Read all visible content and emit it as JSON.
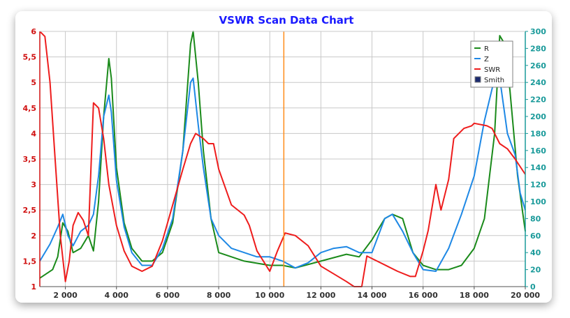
{
  "chart_data": {
    "type": "line",
    "title": "VSWR Scan Data Chart",
    "x_ticks": [
      2000,
      4000,
      6000,
      8000,
      10000,
      12000,
      14000,
      16000,
      18000,
      20000
    ],
    "x_tick_labels": [
      "2 000",
      "4 000",
      "6 000",
      "8 000",
      "10 000",
      "12 000",
      "14 000",
      "16 000",
      "18 000",
      "20 000"
    ],
    "xlim": [
      1000,
      20000
    ],
    "y_left_ticks": [
      "1",
      "1,5",
      "2",
      "2,5",
      "3",
      "3,5",
      "4",
      "4,5",
      "5",
      "5,5",
      "6"
    ],
    "y_left_values": [
      1,
      1.5,
      2,
      2.5,
      3,
      3.5,
      4,
      4.5,
      5,
      5.5,
      6
    ],
    "ylim_left": [
      1,
      6
    ],
    "y_right_ticks": [
      "0",
      "20",
      "40",
      "60",
      "80",
      "100",
      "120",
      "140",
      "160",
      "180",
      "200",
      "220",
      "240",
      "260",
      "280",
      "300"
    ],
    "y_right_values": [
      0,
      20,
      40,
      60,
      80,
      100,
      120,
      140,
      160,
      180,
      200,
      220,
      240,
      260,
      280,
      300
    ],
    "ylim_right": [
      0,
      300
    ],
    "grid": true,
    "legend_position": "top-right",
    "marker_x": 10550,
    "colors": {
      "R": "#1a8a1a",
      "Z": "#1e88e5",
      "SWR": "#ee1c1c",
      "Smith": "#1a2a6e",
      "marker": "#ff8c1a",
      "left_axis": "#d01010",
      "right_axis": "#1a9a9a",
      "title": "#1a1aff"
    },
    "legend": [
      {
        "name": "R",
        "style": "line",
        "color": "#1a8a1a"
      },
      {
        "name": "Z",
        "style": "line",
        "color": "#1e88e5"
      },
      {
        "name": "SWR",
        "style": "line",
        "color": "#ee1c1c"
      },
      {
        "name": "Smith",
        "style": "box",
        "color": "#1a2a6e"
      }
    ],
    "series": [
      {
        "name": "R",
        "axis": "right",
        "color": "#1a8a1a",
        "x": [
          1000,
          1500,
          1700,
          1900,
          2100,
          2300,
          2600,
          2900,
          3100,
          3300,
          3500,
          3700,
          3800,
          4000,
          4300,
          4600,
          5000,
          5400,
          5800,
          6200,
          6600,
          6900,
          7000,
          7200,
          7400,
          7700,
          8000,
          9000,
          10000,
          10500,
          11000,
          12000,
          13000,
          13500,
          14000,
          14500,
          14800,
          15200,
          15600,
          16000,
          16500,
          17000,
          17500,
          18000,
          18400,
          18800,
          19000,
          19200,
          19400,
          19700,
          20000
        ],
        "y": [
          10,
          20,
          35,
          75,
          65,
          40,
          45,
          60,
          42,
          100,
          200,
          268,
          245,
          140,
          75,
          45,
          30,
          30,
          40,
          75,
          160,
          285,
          300,
          240,
          160,
          80,
          40,
          30,
          25,
          25,
          22,
          30,
          38,
          35,
          55,
          80,
          85,
          80,
          40,
          25,
          20,
          20,
          25,
          45,
          80,
          180,
          295,
          285,
          230,
          130,
          65
        ]
      },
      {
        "name": "Z",
        "axis": "right",
        "color": "#1e88e5",
        "x": [
          1000,
          1400,
          1700,
          1900,
          2100,
          2300,
          2600,
          2900,
          3100,
          3300,
          3500,
          3700,
          3800,
          4000,
          4300,
          4600,
          5000,
          5400,
          5800,
          6200,
          6600,
          6900,
          7000,
          7200,
          7400,
          7700,
          8000,
          8500,
          9000,
          9500,
          10000,
          10500,
          11000,
          11500,
          12000,
          12500,
          13000,
          13500,
          14000,
          14500,
          14800,
          15200,
          15600,
          16000,
          16500,
          17000,
          17500,
          18000,
          18400,
          18800,
          19000,
          19300,
          19600,
          19800,
          20000
        ],
        "y": [
          30,
          50,
          70,
          85,
          60,
          48,
          65,
          72,
          85,
          130,
          200,
          225,
          205,
          125,
          70,
          40,
          25,
          25,
          45,
          80,
          160,
          240,
          245,
          190,
          140,
          80,
          60,
          45,
          40,
          35,
          35,
          30,
          22,
          28,
          40,
          45,
          47,
          40,
          40,
          80,
          85,
          65,
          40,
          20,
          18,
          45,
          85,
          130,
          195,
          245,
          245,
          180,
          155,
          110,
          90
        ]
      },
      {
        "name": "SWR",
        "axis": "left",
        "color": "#ee1c1c",
        "x": [
          1000,
          1200,
          1400,
          1600,
          1800,
          2000,
          2150,
          2300,
          2500,
          2700,
          2900,
          3100,
          3300,
          3500,
          3700,
          4000,
          4300,
          4600,
          5000,
          5400,
          5800,
          6200,
          6600,
          6900,
          7100,
          7400,
          7600,
          7800,
          8000,
          8500,
          9000,
          9200,
          9500,
          10000,
          10300,
          10600,
          11000,
          11500,
          12000,
          12500,
          13000,
          13300,
          13600,
          13800,
          14200,
          14600,
          15000,
          15500,
          15700,
          16000,
          16200,
          16500,
          16700,
          17000,
          17200,
          17600,
          17900,
          18000,
          18500,
          18700,
          19000,
          19300,
          19600,
          20000
        ],
        "y": [
          6,
          5.9,
          5,
          3.5,
          2,
          1.1,
          1.5,
          2.2,
          2.45,
          2.3,
          2.0,
          4.6,
          4.5,
          3.9,
          3.0,
          2.2,
          1.7,
          1.4,
          1.3,
          1.4,
          1.9,
          2.6,
          3.3,
          3.8,
          4.0,
          3.9,
          3.8,
          3.8,
          3.3,
          2.6,
          2.4,
          2.2,
          1.7,
          1.3,
          1.7,
          2.05,
          2.0,
          1.8,
          1.4,
          1.25,
          1.1,
          1.0,
          1.0,
          1.6,
          1.5,
          1.4,
          1.3,
          1.2,
          1.2,
          1.7,
          2.1,
          3.0,
          2.5,
          3.1,
          3.9,
          4.1,
          4.15,
          4.2,
          4.15,
          4.1,
          3.8,
          3.7,
          3.5,
          3.2
        ]
      }
    ]
  }
}
